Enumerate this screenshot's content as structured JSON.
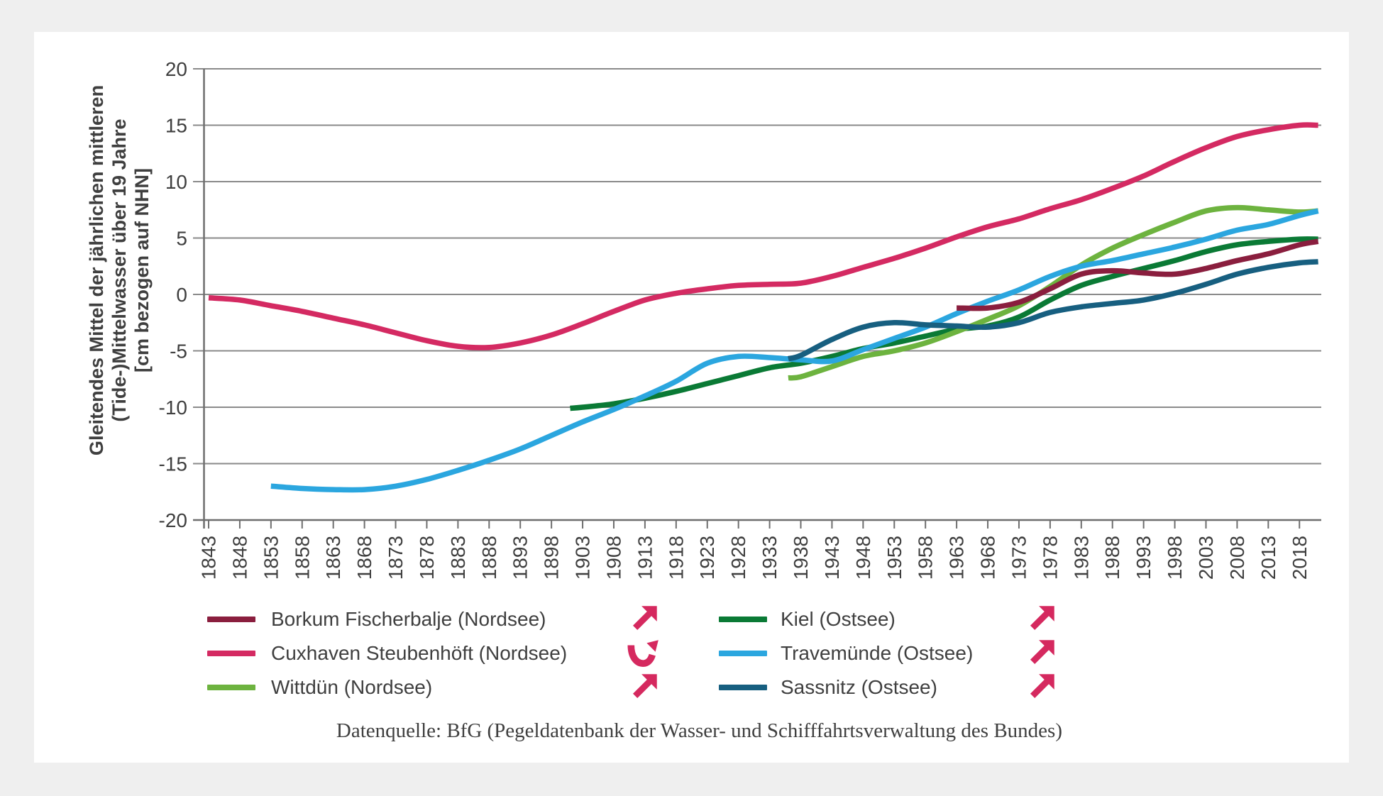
{
  "theme": {
    "background": "#efefef",
    "panel": "#ffffff",
    "grid_color": "#8a8a8a",
    "axis_color": "#6e6e6e",
    "text_color": "#3f3f3f",
    "accent_arrow_color": "#d5295f"
  },
  "chart": {
    "y_axis_title": "Gleitendes Mittel der jährlichen mittleren\n(Tide-)Mittelwasser über 19 Jahre\n[cm bezogen auf NHN]",
    "source_note": "Datenquelle: BfG (Pegeldatenbank der Wasser- und Schifffahrtsverwaltung des Bundes)"
  },
  "chart_data": {
    "type": "line",
    "title": "",
    "xlabel": "",
    "ylabel": "Gleitendes Mittel der jährlichen mittleren (Tide-)Mittelwasser über 19 Jahre [cm bezogen auf NHN]",
    "x_range": [
      1843,
      2021.5
    ],
    "y_range": [
      -20,
      20
    ],
    "x_ticks": [
      1843,
      1848,
      1853,
      1858,
      1863,
      1868,
      1873,
      1878,
      1883,
      1888,
      1893,
      1898,
      1903,
      1908,
      1913,
      1918,
      1923,
      1928,
      1933,
      1938,
      1943,
      1948,
      1953,
      1958,
      1963,
      1968,
      1973,
      1978,
      1983,
      1988,
      1993,
      1998,
      2003,
      2008,
      2013,
      2018
    ],
    "y_ticks": [
      20,
      15,
      10,
      5,
      0,
      -5,
      -10,
      -15,
      -20
    ],
    "grid": "horizontal",
    "legend_position": "bottom",
    "draw_order": [
      3,
      2,
      4,
      5,
      0,
      1
    ],
    "series": [
      {
        "name": "Borkum Fischerbalje (Nordsee)",
        "color": "#8a1e3e",
        "trend_arrow": "up-right",
        "legend_column": 0,
        "legend_row": 0,
        "points": [
          [
            1963,
            -1.2
          ],
          [
            1968,
            -1.2
          ],
          [
            1973,
            -0.7
          ],
          [
            1978,
            0.5
          ],
          [
            1983,
            1.8
          ],
          [
            1988,
            2.1
          ],
          [
            1993,
            1.9
          ],
          [
            1998,
            1.8
          ],
          [
            2003,
            2.3
          ],
          [
            2008,
            3.0
          ],
          [
            2013,
            3.6
          ],
          [
            2018,
            4.4
          ],
          [
            2021,
            4.7
          ]
        ]
      },
      {
        "name": "Cuxhaven Steubenhöft (Nordsee)",
        "color": "#d42a62",
        "trend_arrow": "curve-up",
        "legend_column": 0,
        "legend_row": 1,
        "points": [
          [
            1843,
            -0.3
          ],
          [
            1848,
            -0.5
          ],
          [
            1853,
            -1.0
          ],
          [
            1858,
            -1.5
          ],
          [
            1863,
            -2.1
          ],
          [
            1868,
            -2.7
          ],
          [
            1873,
            -3.4
          ],
          [
            1878,
            -4.1
          ],
          [
            1883,
            -4.6
          ],
          [
            1888,
            -4.7
          ],
          [
            1893,
            -4.3
          ],
          [
            1898,
            -3.6
          ],
          [
            1903,
            -2.6
          ],
          [
            1908,
            -1.5
          ],
          [
            1913,
            -0.5
          ],
          [
            1918,
            0.1
          ],
          [
            1923,
            0.5
          ],
          [
            1928,
            0.8
          ],
          [
            1933,
            0.9
          ],
          [
            1938,
            1.0
          ],
          [
            1943,
            1.6
          ],
          [
            1948,
            2.4
          ],
          [
            1953,
            3.2
          ],
          [
            1958,
            4.1
          ],
          [
            1963,
            5.1
          ],
          [
            1968,
            6.0
          ],
          [
            1973,
            6.7
          ],
          [
            1978,
            7.6
          ],
          [
            1983,
            8.4
          ],
          [
            1988,
            9.4
          ],
          [
            1993,
            10.5
          ],
          [
            1998,
            11.8
          ],
          [
            2003,
            13.0
          ],
          [
            2008,
            14.0
          ],
          [
            2013,
            14.6
          ],
          [
            2018,
            15.0
          ],
          [
            2021,
            15.0
          ]
        ]
      },
      {
        "name": "Wittdün (Nordsee)",
        "color": "#6db33f",
        "trend_arrow": "up-right",
        "legend_column": 0,
        "legend_row": 2,
        "points": [
          [
            1936,
            -7.4
          ],
          [
            1938,
            -7.3
          ],
          [
            1943,
            -6.4
          ],
          [
            1948,
            -5.5
          ],
          [
            1953,
            -5.0
          ],
          [
            1958,
            -4.3
          ],
          [
            1963,
            -3.3
          ],
          [
            1968,
            -2.2
          ],
          [
            1973,
            -1.0
          ],
          [
            1978,
            0.7
          ],
          [
            1983,
            2.6
          ],
          [
            1988,
            4.1
          ],
          [
            1993,
            5.3
          ],
          [
            1998,
            6.4
          ],
          [
            2003,
            7.4
          ],
          [
            2008,
            7.7
          ],
          [
            2013,
            7.5
          ],
          [
            2018,
            7.3
          ],
          [
            2021,
            7.4
          ]
        ]
      },
      {
        "name": "Kiel (Ostsee)",
        "color": "#0a7a35",
        "trend_arrow": "up-right",
        "legend_column": 1,
        "legend_row": 0,
        "points": [
          [
            1901,
            -10.1
          ],
          [
            1903,
            -10.0
          ],
          [
            1908,
            -9.7
          ],
          [
            1913,
            -9.2
          ],
          [
            1918,
            -8.6
          ],
          [
            1923,
            -7.9
          ],
          [
            1928,
            -7.2
          ],
          [
            1933,
            -6.5
          ],
          [
            1938,
            -6.1
          ],
          [
            1943,
            -5.5
          ],
          [
            1948,
            -4.8
          ],
          [
            1953,
            -4.3
          ],
          [
            1958,
            -3.7
          ],
          [
            1963,
            -3.1
          ],
          [
            1968,
            -2.8
          ],
          [
            1973,
            -2.0
          ],
          [
            1978,
            -0.5
          ],
          [
            1983,
            0.8
          ],
          [
            1988,
            1.6
          ],
          [
            1993,
            2.3
          ],
          [
            1998,
            3.0
          ],
          [
            2003,
            3.8
          ],
          [
            2008,
            4.4
          ],
          [
            2013,
            4.7
          ],
          [
            2018,
            4.9
          ],
          [
            2021,
            4.9
          ]
        ]
      },
      {
        "name": "Travemünde (Ostsee)",
        "color": "#2ba6df",
        "trend_arrow": "up-right",
        "legend_column": 1,
        "legend_row": 1,
        "points": [
          [
            1853,
            -17.0
          ],
          [
            1858,
            -17.2
          ],
          [
            1863,
            -17.3
          ],
          [
            1868,
            -17.3
          ],
          [
            1873,
            -17.0
          ],
          [
            1878,
            -16.4
          ],
          [
            1883,
            -15.6
          ],
          [
            1888,
            -14.7
          ],
          [
            1893,
            -13.7
          ],
          [
            1898,
            -12.5
          ],
          [
            1903,
            -11.3
          ],
          [
            1908,
            -10.2
          ],
          [
            1913,
            -9.0
          ],
          [
            1918,
            -7.7
          ],
          [
            1923,
            -6.1
          ],
          [
            1928,
            -5.5
          ],
          [
            1933,
            -5.6
          ],
          [
            1938,
            -5.8
          ],
          [
            1943,
            -5.9
          ],
          [
            1948,
            -4.9
          ],
          [
            1953,
            -3.9
          ],
          [
            1958,
            -2.9
          ],
          [
            1963,
            -1.7
          ],
          [
            1968,
            -0.6
          ],
          [
            1973,
            0.4
          ],
          [
            1978,
            1.6
          ],
          [
            1983,
            2.5
          ],
          [
            1988,
            3.0
          ],
          [
            1993,
            3.6
          ],
          [
            1998,
            4.2
          ],
          [
            2003,
            4.9
          ],
          [
            2008,
            5.7
          ],
          [
            2013,
            6.2
          ],
          [
            2018,
            7.0
          ],
          [
            2021,
            7.4
          ]
        ]
      },
      {
        "name": "Sassnitz (Ostsee)",
        "color": "#175f80",
        "trend_arrow": "up-right",
        "legend_column": 1,
        "legend_row": 2,
        "points": [
          [
            1936,
            -5.7
          ],
          [
            1938,
            -5.4
          ],
          [
            1943,
            -4.0
          ],
          [
            1948,
            -2.9
          ],
          [
            1953,
            -2.5
          ],
          [
            1958,
            -2.7
          ],
          [
            1963,
            -2.8
          ],
          [
            1968,
            -2.9
          ],
          [
            1973,
            -2.5
          ],
          [
            1978,
            -1.6
          ],
          [
            1983,
            -1.1
          ],
          [
            1988,
            -0.8
          ],
          [
            1993,
            -0.5
          ],
          [
            1998,
            0.1
          ],
          [
            2003,
            0.9
          ],
          [
            2008,
            1.8
          ],
          [
            2013,
            2.4
          ],
          [
            2018,
            2.8
          ],
          [
            2021,
            2.9
          ]
        ]
      }
    ]
  },
  "legend": {
    "arrow_color": "#d5295f",
    "icons": {
      "up-right": "trend-up-arrow",
      "curve-up": "trend-reversal-up-arrow"
    }
  }
}
